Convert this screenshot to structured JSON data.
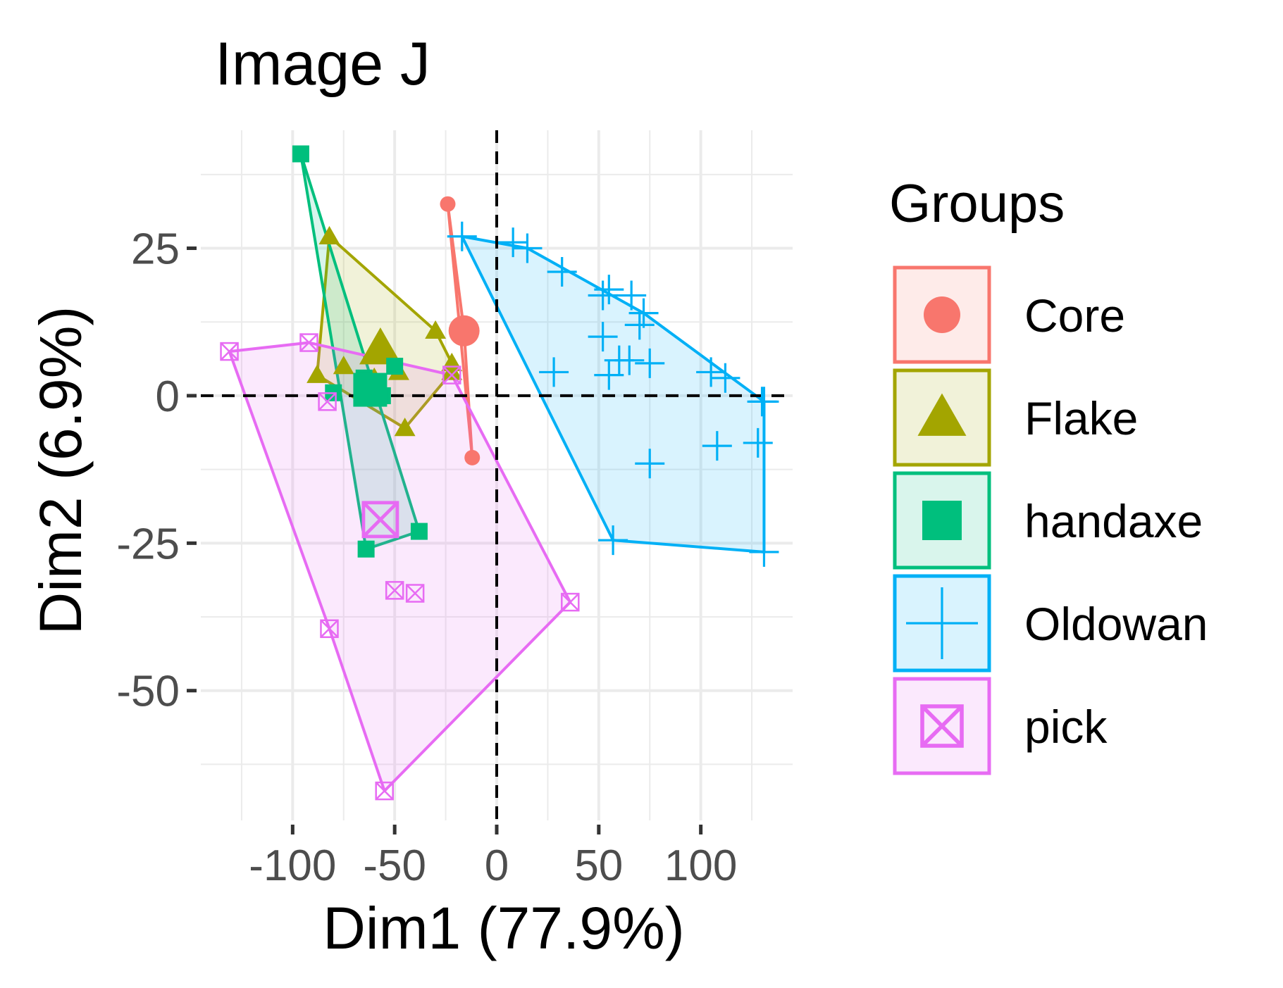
{
  "chart_data": {
    "type": "scatter",
    "title": "Image J",
    "xlabel": "Dim1 (77.9%)",
    "ylabel": "Dim2 (6.9%)",
    "xlim": [
      -145,
      145
    ],
    "ylim": [
      -72,
      45
    ],
    "x_ticks": [
      -100,
      -50,
      0,
      50,
      100
    ],
    "x_tick_labels": [
      "-100",
      "-50",
      "0",
      "50",
      "100"
    ],
    "y_ticks": [
      -50,
      -25,
      0,
      25
    ],
    "y_tick_labels": [
      "-50",
      "-25",
      "0",
      "25"
    ],
    "grid": true,
    "legend": {
      "title": "Groups",
      "position": "right"
    },
    "series": [
      {
        "name": "Core",
        "color": "#F8766D",
        "shape": "circle",
        "points": [
          [
            -24,
            32.5
          ],
          [
            -12,
            -10.5
          ]
        ],
        "hull": [
          [
            -24,
            32.5
          ],
          [
            -12,
            -10.5
          ],
          [
            -16,
            11
          ]
        ],
        "centroid": [
          -16,
          11
        ]
      },
      {
        "name": "Flake",
        "color": "#A3A500",
        "shape": "triangle",
        "points": [
          [
            -82,
            27
          ],
          [
            -88,
            3.5
          ],
          [
            -75,
            5
          ],
          [
            -30,
            11
          ],
          [
            -22,
            5.5
          ],
          [
            -22,
            4
          ],
          [
            -45,
            -5.5
          ],
          [
            -48,
            4
          ],
          [
            -60,
            3
          ]
        ],
        "hull": [
          [
            -82,
            27
          ],
          [
            -30,
            11
          ],
          [
            -22,
            5.5
          ],
          [
            -22,
            4
          ],
          [
            -45,
            -5.5
          ],
          [
            -88,
            3.5
          ]
        ],
        "centroid": [
          -57,
          8
        ]
      },
      {
        "name": "handaxe",
        "color": "#00BF7D",
        "shape": "square",
        "points": [
          [
            -96,
            41
          ],
          [
            -80,
            0.5
          ],
          [
            -65,
            3
          ],
          [
            -56,
            0
          ],
          [
            -50,
            5
          ],
          [
            -38,
            -23
          ],
          [
            -64,
            -26
          ]
        ],
        "hull": [
          [
            -96,
            41
          ],
          [
            -38,
            -23
          ],
          [
            -64,
            -26
          ]
        ],
        "centroid": [
          -62,
          1
        ]
      },
      {
        "name": "Oldowan",
        "color": "#00B0F6",
        "shape": "plus",
        "points": [
          [
            -17,
            27
          ],
          [
            8,
            26
          ],
          [
            15,
            25
          ],
          [
            32,
            21
          ],
          [
            52,
            17
          ],
          [
            55,
            18
          ],
          [
            66,
            17
          ],
          [
            72,
            14
          ],
          [
            52,
            10
          ],
          [
            70,
            12
          ],
          [
            28,
            4
          ],
          [
            55,
            3.5
          ],
          [
            60,
            6
          ],
          [
            65,
            6
          ],
          [
            75,
            5.5
          ],
          [
            105,
            4
          ],
          [
            112,
            3
          ],
          [
            130,
            -1
          ],
          [
            131,
            -1
          ],
          [
            108,
            -8.5
          ],
          [
            128,
            -8
          ],
          [
            75,
            -11.5
          ],
          [
            57,
            -24.5
          ],
          [
            131,
            -26.5
          ]
        ],
        "hull": [
          [
            -17,
            27
          ],
          [
            15,
            25
          ],
          [
            72,
            14
          ],
          [
            131,
            -1
          ],
          [
            131,
            -26.5
          ],
          [
            57,
            -24.5
          ]
        ],
        "centroid": null
      },
      {
        "name": "pick",
        "color": "#E76BF3",
        "shape": "square-cross",
        "points": [
          [
            -131,
            7.5
          ],
          [
            -92,
            9
          ],
          [
            -83,
            -1
          ],
          [
            -22,
            3.5
          ],
          [
            -50,
            -33
          ],
          [
            -40,
            -33.5
          ],
          [
            36,
            -35
          ],
          [
            -82,
            -39.5
          ],
          [
            -55,
            -67
          ]
        ],
        "hull": [
          [
            -131,
            7.5
          ],
          [
            -92,
            9
          ],
          [
            -22,
            3.5
          ],
          [
            36,
            -35
          ],
          [
            -55,
            -67
          ],
          [
            -82,
            -39.5
          ]
        ],
        "centroid": [
          -57,
          -21
        ]
      }
    ]
  }
}
